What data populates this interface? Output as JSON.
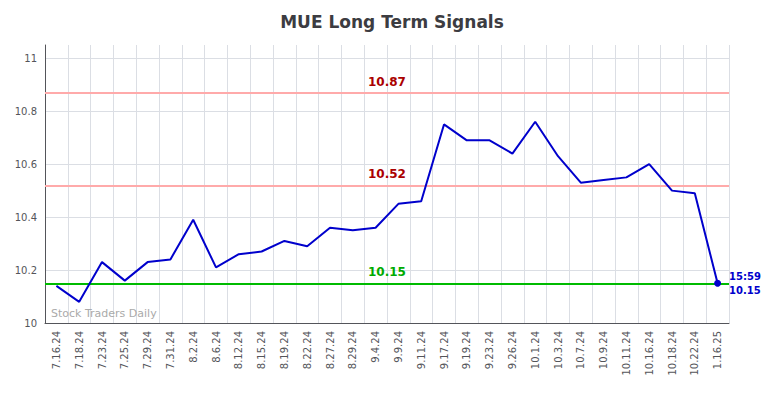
{
  "chart_data": {
    "type": "line",
    "title": "MUE Long Term Signals",
    "categories": [
      "7.16.24",
      "7.18.24",
      "7.23.24",
      "7.25.24",
      "7.29.24",
      "7.31.24",
      "8.2.24",
      "8.6.24",
      "8.12.24",
      "8.15.24",
      "8.19.24",
      "8.22.24",
      "8.27.24",
      "8.29.24",
      "9.4.24",
      "9.9.24",
      "9.11.24",
      "9.17.24",
      "9.19.24",
      "9.23.24",
      "9.26.24",
      "10.1.24",
      "10.3.24",
      "10.7.24",
      "10.9.24",
      "10.11.24",
      "10.16.24",
      "10.18.24",
      "10.22.24",
      "1.16.25"
    ],
    "values": [
      10.14,
      10.08,
      10.23,
      10.16,
      10.23,
      10.24,
      10.39,
      10.21,
      10.26,
      10.27,
      10.31,
      10.29,
      10.36,
      10.35,
      10.36,
      10.45,
      10.46,
      10.75,
      10.69,
      10.69,
      10.64,
      10.76,
      10.63,
      10.53,
      10.54,
      10.55,
      10.6,
      10.5,
      10.49,
      10.15
    ],
    "color": "#0000cc",
    "ylim": [
      10.0,
      11.05
    ],
    "yticks": [
      10,
      10.2,
      10.4,
      10.6,
      10.8,
      11
    ],
    "grid": true,
    "hlines": [
      {
        "value": 10.15,
        "color": "#00bb00",
        "label": "10.15",
        "label_color": "#00aa00"
      },
      {
        "value": 10.52,
        "color": "#ffaaaa",
        "label": "10.52",
        "label_color": "#aa0000"
      },
      {
        "value": 10.87,
        "color": "#ffaaaa",
        "label": "10.87",
        "label_color": "#aa0000"
      }
    ],
    "last_point_annotation": [
      "15:59",
      "10.15"
    ],
    "annotation_color": "#0000cc",
    "watermark": "Stock Traders Daily",
    "watermark_color": "#aaaaaa"
  }
}
